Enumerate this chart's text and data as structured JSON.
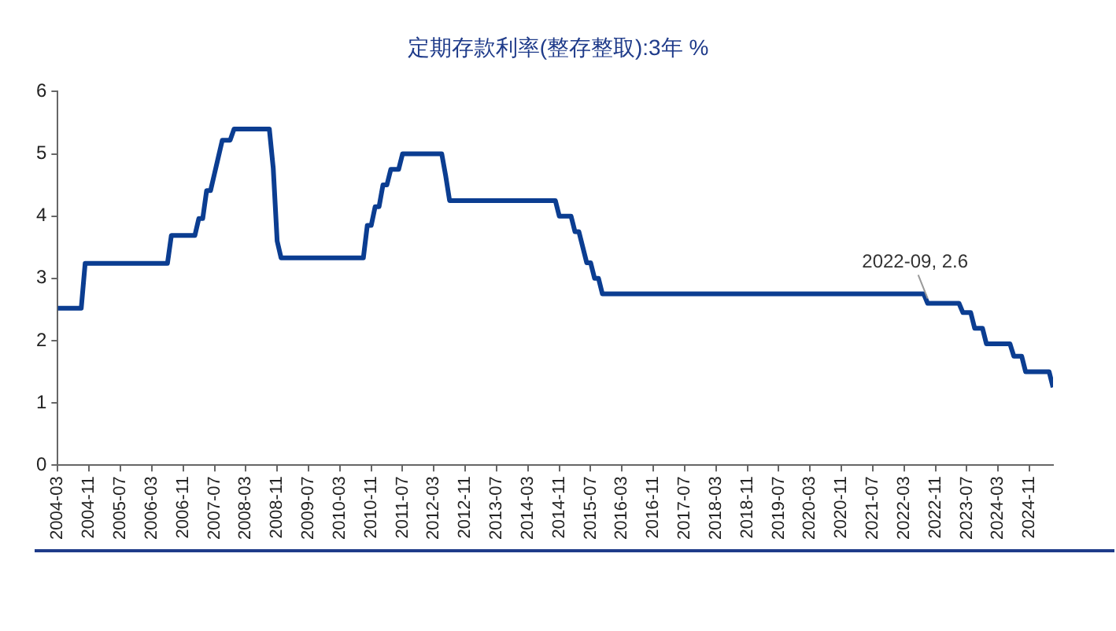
{
  "chart_data": {
    "type": "line",
    "title": "定期存款利率(整存整取):3年 %",
    "x": [
      "2004-03",
      "2004-04",
      "2004-05",
      "2004-06",
      "2004-07",
      "2004-08",
      "2004-09",
      "2004-10",
      "2004-11",
      "2004-12",
      "2005-01",
      "2005-02",
      "2005-03",
      "2005-04",
      "2005-05",
      "2005-06",
      "2005-07",
      "2005-08",
      "2005-09",
      "2005-10",
      "2005-11",
      "2005-12",
      "2006-01",
      "2006-02",
      "2006-03",
      "2006-04",
      "2006-05",
      "2006-06",
      "2006-07",
      "2006-08",
      "2006-09",
      "2006-10",
      "2006-11",
      "2006-12",
      "2007-01",
      "2007-02",
      "2007-03",
      "2007-04",
      "2007-05",
      "2007-06",
      "2007-07",
      "2007-08",
      "2007-09",
      "2007-10",
      "2007-11",
      "2007-12",
      "2008-01",
      "2008-02",
      "2008-03",
      "2008-04",
      "2008-05",
      "2008-06",
      "2008-07",
      "2008-08",
      "2008-09",
      "2008-10",
      "2008-11",
      "2008-12",
      "2009-01",
      "2009-02",
      "2009-03",
      "2009-04",
      "2009-05",
      "2009-06",
      "2009-07",
      "2009-08",
      "2009-09",
      "2009-10",
      "2009-11",
      "2009-12",
      "2010-01",
      "2010-02",
      "2010-03",
      "2010-04",
      "2010-05",
      "2010-06",
      "2010-07",
      "2010-08",
      "2010-09",
      "2010-10",
      "2010-11",
      "2010-12",
      "2011-01",
      "2011-02",
      "2011-03",
      "2011-04",
      "2011-05",
      "2011-06",
      "2011-07",
      "2011-08",
      "2011-09",
      "2011-10",
      "2011-11",
      "2011-12",
      "2012-01",
      "2012-02",
      "2012-03",
      "2012-04",
      "2012-05",
      "2012-06",
      "2012-07",
      "2012-08",
      "2012-09",
      "2012-10",
      "2012-11",
      "2012-12",
      "2013-01",
      "2013-02",
      "2013-03",
      "2013-04",
      "2013-05",
      "2013-06",
      "2013-07",
      "2013-08",
      "2013-09",
      "2013-10",
      "2013-11",
      "2013-12",
      "2014-01",
      "2014-02",
      "2014-03",
      "2014-04",
      "2014-05",
      "2014-06",
      "2014-07",
      "2014-08",
      "2014-09",
      "2014-10",
      "2014-11",
      "2014-12",
      "2015-01",
      "2015-02",
      "2015-03",
      "2015-04",
      "2015-05",
      "2015-06",
      "2015-07",
      "2015-08",
      "2015-09",
      "2015-10",
      "2015-11",
      "2015-12",
      "2016-01",
      "2016-02",
      "2016-03",
      "2016-04",
      "2016-05",
      "2016-06",
      "2016-07",
      "2016-08",
      "2016-09",
      "2016-10",
      "2016-11",
      "2016-12",
      "2017-01",
      "2017-02",
      "2017-03",
      "2017-04",
      "2017-05",
      "2017-06",
      "2017-07",
      "2017-08",
      "2017-09",
      "2017-10",
      "2017-11",
      "2017-12",
      "2018-01",
      "2018-02",
      "2018-03",
      "2018-04",
      "2018-05",
      "2018-06",
      "2018-07",
      "2018-08",
      "2018-09",
      "2018-10",
      "2018-11",
      "2018-12",
      "2019-01",
      "2019-02",
      "2019-03",
      "2019-04",
      "2019-05",
      "2019-06",
      "2019-07",
      "2019-08",
      "2019-09",
      "2019-10",
      "2019-11",
      "2019-12",
      "2020-01",
      "2020-02",
      "2020-03",
      "2020-04",
      "2020-05",
      "2020-06",
      "2020-07",
      "2020-08",
      "2020-09",
      "2020-10",
      "2020-11",
      "2020-12",
      "2021-01",
      "2021-02",
      "2021-03",
      "2021-04",
      "2021-05",
      "2021-06",
      "2021-07",
      "2021-08",
      "2021-09",
      "2021-10",
      "2021-11",
      "2021-12",
      "2022-01",
      "2022-02",
      "2022-03",
      "2022-04",
      "2022-05",
      "2022-06",
      "2022-07",
      "2022-08",
      "2022-09",
      "2022-10",
      "2022-11",
      "2022-12",
      "2023-01",
      "2023-02",
      "2023-03",
      "2023-04",
      "2023-05",
      "2023-06",
      "2023-07",
      "2023-08",
      "2023-09",
      "2023-10",
      "2023-11",
      "2023-12",
      "2024-01",
      "2024-02",
      "2024-03",
      "2024-04",
      "2024-05",
      "2024-06",
      "2024-07",
      "2024-08",
      "2024-09",
      "2024-10",
      "2024-11",
      "2024-12",
      "2025-01",
      "2025-02",
      "2025-03",
      "2025-04",
      "2025-05"
    ],
    "series": [
      {
        "color": "#0b3d91",
        "values": [
          2.52,
          2.52,
          2.52,
          2.52,
          2.52,
          2.52,
          2.52,
          3.24,
          3.24,
          3.24,
          3.24,
          3.24,
          3.24,
          3.24,
          3.24,
          3.24,
          3.24,
          3.24,
          3.24,
          3.24,
          3.24,
          3.24,
          3.24,
          3.24,
          3.24,
          3.24,
          3.24,
          3.24,
          3.24,
          3.69,
          3.69,
          3.69,
          3.69,
          3.69,
          3.69,
          3.69,
          3.96,
          3.96,
          4.41,
          4.41,
          4.68,
          4.95,
          5.22,
          5.22,
          5.22,
          5.4,
          5.4,
          5.4,
          5.4,
          5.4,
          5.4,
          5.4,
          5.4,
          5.4,
          5.4,
          4.77,
          3.6,
          3.33,
          3.33,
          3.33,
          3.33,
          3.33,
          3.33,
          3.33,
          3.33,
          3.33,
          3.33,
          3.33,
          3.33,
          3.33,
          3.33,
          3.33,
          3.33,
          3.33,
          3.33,
          3.33,
          3.33,
          3.33,
          3.33,
          3.85,
          3.85,
          4.15,
          4.15,
          4.5,
          4.5,
          4.75,
          4.75,
          4.75,
          5,
          5,
          5,
          5,
          5,
          5,
          5,
          5,
          5,
          5,
          5,
          4.65,
          4.25,
          4.25,
          4.25,
          4.25,
          4.25,
          4.25,
          4.25,
          4.25,
          4.25,
          4.25,
          4.25,
          4.25,
          4.25,
          4.25,
          4.25,
          4.25,
          4.25,
          4.25,
          4.25,
          4.25,
          4.25,
          4.25,
          4.25,
          4.25,
          4.25,
          4.25,
          4.25,
          4.25,
          4,
          4,
          4,
          4,
          3.75,
          3.75,
          3.5,
          3.25,
          3.25,
          3,
          3,
          2.75,
          2.75,
          2.75,
          2.75,
          2.75,
          2.75,
          2.75,
          2.75,
          2.75,
          2.75,
          2.75,
          2.75,
          2.75,
          2.75,
          2.75,
          2.75,
          2.75,
          2.75,
          2.75,
          2.75,
          2.75,
          2.75,
          2.75,
          2.75,
          2.75,
          2.75,
          2.75,
          2.75,
          2.75,
          2.75,
          2.75,
          2.75,
          2.75,
          2.75,
          2.75,
          2.75,
          2.75,
          2.75,
          2.75,
          2.75,
          2.75,
          2.75,
          2.75,
          2.75,
          2.75,
          2.75,
          2.75,
          2.75,
          2.75,
          2.75,
          2.75,
          2.75,
          2.75,
          2.75,
          2.75,
          2.75,
          2.75,
          2.75,
          2.75,
          2.75,
          2.75,
          2.75,
          2.75,
          2.75,
          2.75,
          2.75,
          2.75,
          2.75,
          2.75,
          2.75,
          2.75,
          2.75,
          2.75,
          2.75,
          2.75,
          2.75,
          2.75,
          2.75,
          2.75,
          2.75,
          2.75,
          2.75,
          2.75,
          2.6,
          2.6,
          2.6,
          2.6,
          2.6,
          2.6,
          2.6,
          2.6,
          2.6,
          2.45,
          2.45,
          2.45,
          2.2,
          2.2,
          2.2,
          1.95,
          1.95,
          1.95,
          1.95,
          1.95,
          1.95,
          1.95,
          1.75,
          1.75,
          1.75,
          1.5,
          1.5,
          1.5,
          1.5,
          1.5,
          1.5,
          1.5,
          1.25
        ]
      }
    ],
    "xlim": [
      "2004-03",
      "2025-05"
    ],
    "xticks": [
      "2004-03",
      "2004-11",
      "2005-07",
      "2006-03",
      "2006-11",
      "2007-07",
      "2008-03",
      "2008-11",
      "2009-07",
      "2010-03",
      "2010-11",
      "2011-07",
      "2012-03",
      "2012-11",
      "2013-07",
      "2014-03",
      "2014-11",
      "2015-07",
      "2016-03",
      "2016-11",
      "2017-07",
      "2018-03",
      "2018-11",
      "2019-07",
      "2020-03",
      "2020-11",
      "2021-07",
      "2022-03",
      "2022-11",
      "2023-07",
      "2024-03",
      "2024-11"
    ],
    "ylim": [
      0,
      6
    ],
    "yticks": [
      0,
      1,
      2,
      3,
      4,
      5,
      6
    ],
    "grid": false,
    "legend": false,
    "marker": "none",
    "line_style": "solid",
    "annotations": [
      {
        "text": "2022-09, 2.6",
        "x": "2022-09",
        "y": 2.6
      }
    ]
  }
}
